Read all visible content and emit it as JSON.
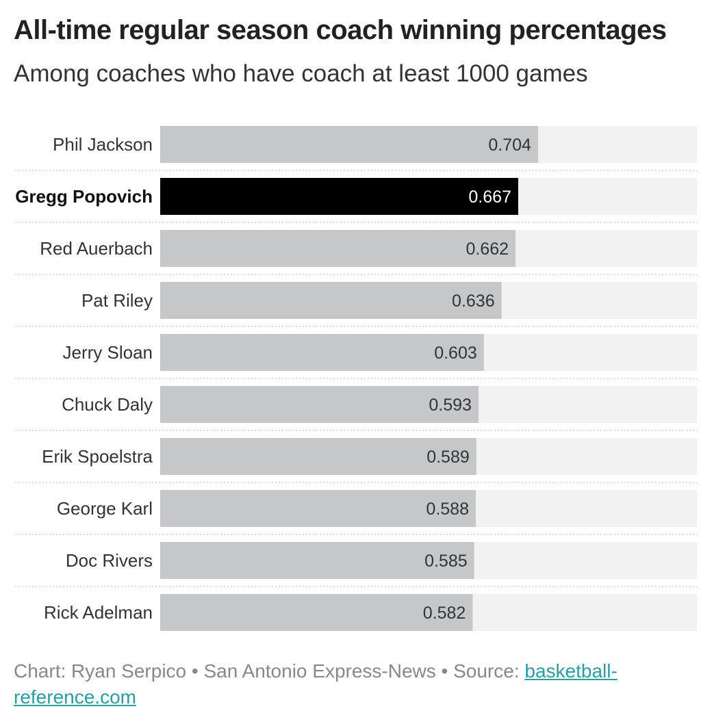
{
  "title": "All-time regular season coach winning percentages",
  "subtitle": "Among coaches who have coach at least 1000 games",
  "footer": {
    "credit": "Chart: Ryan Serpico • San Antonio Express-News • Source: ",
    "source_link": "basketball-reference.com"
  },
  "colors": {
    "bar": "#c6c7c9",
    "bar_highlight": "#000000",
    "track": "#f2f2f2",
    "label_text": "#333333",
    "value_text": "#333333",
    "value_text_highlight": "#ffffff",
    "separator": "#cfcfcf",
    "link": "#2a9d9f"
  },
  "chart_data": {
    "type": "bar",
    "orientation": "horizontal",
    "categories": [
      "Phil Jackson",
      "Gregg Popovich",
      "Red Auerbach",
      "Pat Riley",
      "Jerry Sloan",
      "Chuck Daly",
      "Erik Spoelstra",
      "George Karl",
      "Doc Rivers",
      "Rick Adelman"
    ],
    "values": [
      0.704,
      0.667,
      0.662,
      0.636,
      0.603,
      0.593,
      0.589,
      0.588,
      0.585,
      0.582
    ],
    "value_labels": [
      "0.704",
      "0.667",
      "0.662",
      "0.636",
      "0.603",
      "0.593",
      "0.589",
      "0.588",
      "0.585",
      "0.582"
    ],
    "highlight": "Gregg Popovich",
    "xlim": [
      0,
      1
    ],
    "title": "All-time regular season coach winning percentages",
    "subtitle": "Among coaches who have coach at least 1000 games",
    "xlabel": "",
    "ylabel": "",
    "grid": false
  }
}
